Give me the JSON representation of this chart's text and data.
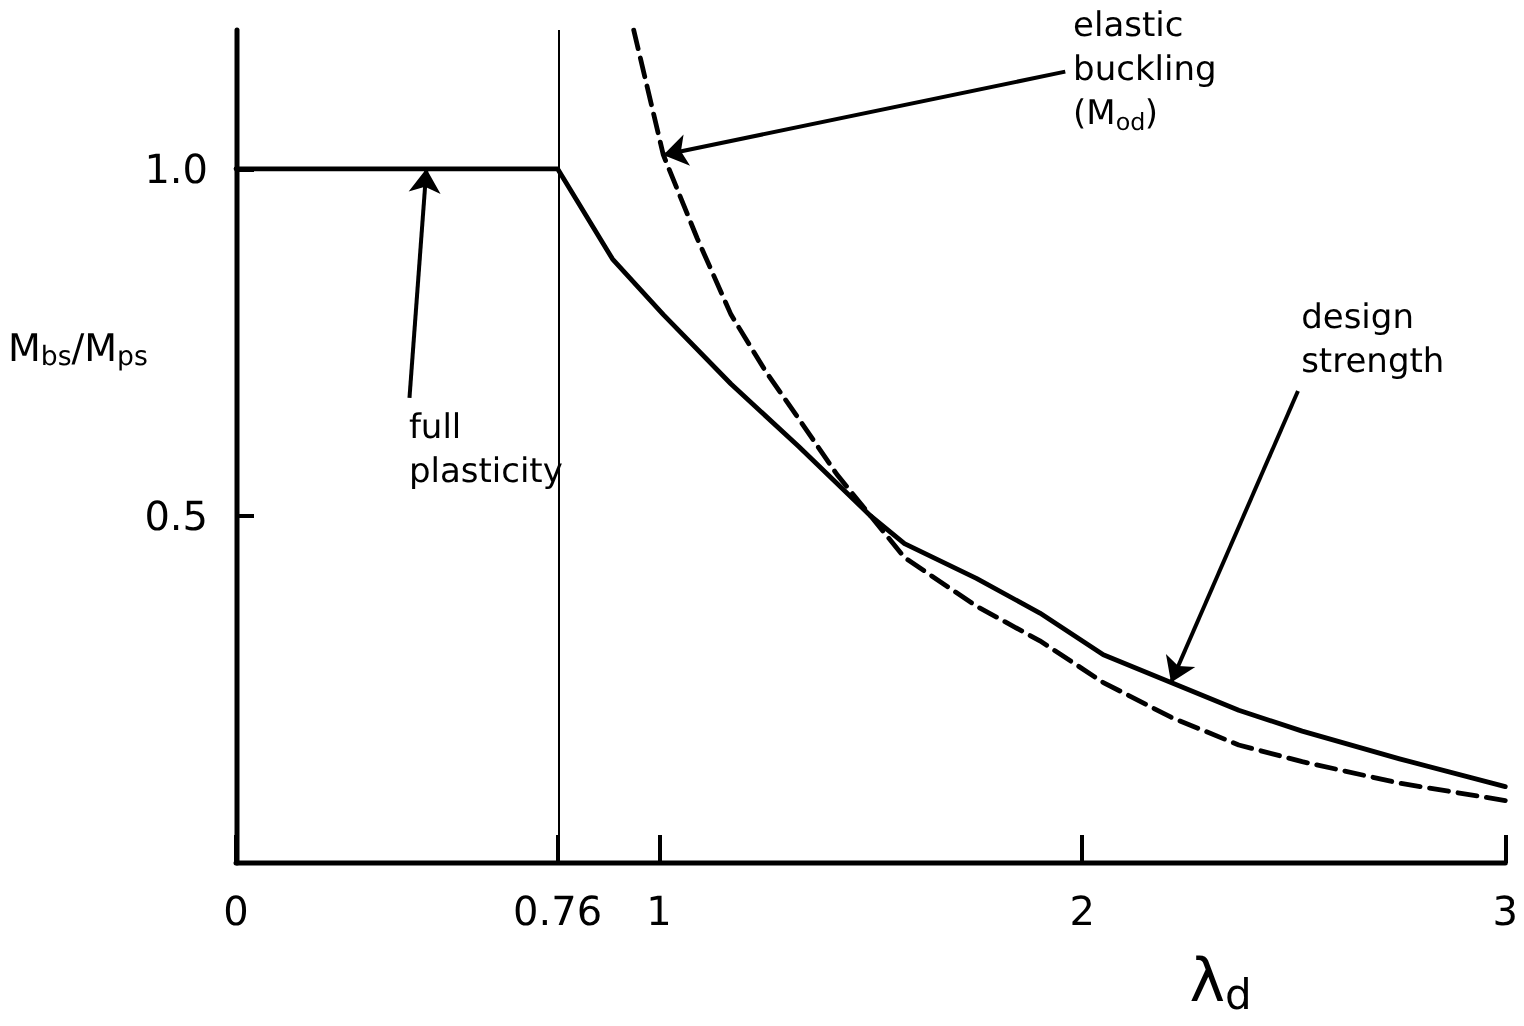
{
  "chart_data": {
    "type": "line",
    "xlabel": "λ$_{d}$",
    "ylabel": "M$_{bs}$/M$_{ps}$",
    "xlim": [
      0,
      3
    ],
    "ylim": [
      0,
      1.2
    ],
    "xticks": [
      0,
      0.76,
      1,
      2,
      3
    ],
    "yticks": [
      0.5,
      {
        "value": 1,
        "label": "1.0"
      }
    ],
    "marker": "none",
    "series": [
      {
        "color": "#000000",
        "line_style": "solid",
        "x": [
          0,
          0.76,
          0.8,
          0.89,
          1.01,
          1.17,
          1.33,
          1.5,
          1.58,
          1.75,
          1.9,
          2.05,
          2.21,
          2.37,
          2.52,
          2.75,
          3
        ],
        "values": [
          1,
          1,
          0.96,
          0.87,
          0.79,
          0.69,
          0.6,
          0.5,
          0.46,
          0.41,
          0.36,
          0.3,
          0.26,
          0.22,
          0.19,
          0.15,
          0.11
        ]
      },
      {
        "color": "#000000",
        "line_style": "dashed",
        "x": [
          0.94,
          1.01,
          1.09,
          1.17,
          1.25,
          1.33,
          1.42,
          1.5,
          1.58,
          1.75,
          1.9,
          2.05,
          2.21,
          2.37,
          2.52,
          2.75,
          3
        ],
        "values": [
          1.2,
          1.02,
          0.9,
          0.79,
          0.71,
          0.64,
          0.56,
          0.5,
          0.44,
          0.37,
          0.32,
          0.26,
          0.21,
          0.17,
          0.146,
          0.115,
          0.09
        ]
      }
    ],
    "ref_lines": [
      {
        "axis": "x",
        "value": 0.76,
        "color": "#000000"
      }
    ],
    "annotations": [
      {
        "text": "full plasticity",
        "x": 0.45,
        "y": 1.0
      },
      {
        "text": "elastic buckling\n(M$_{od}$)",
        "x": 1.01,
        "y": 1.02
      },
      {
        "text": "design strength",
        "x": 2.21,
        "y": 0.26
      }
    ]
  }
}
